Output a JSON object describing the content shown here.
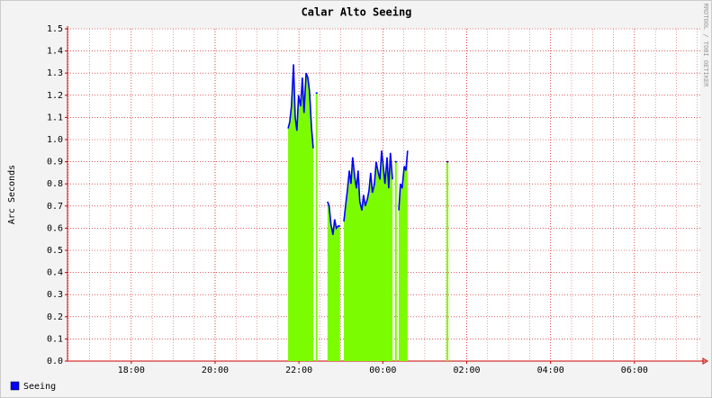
{
  "chart_data": {
    "type": "area",
    "title": "Calar Alto Seeing",
    "y_label": "Arc Seconds",
    "watermark": "RRDTOOL / TOBI OETIKER",
    "x": [
      21.74,
      21.78,
      21.82,
      21.87,
      21.91,
      21.95,
      21.99,
      22.04,
      22.08,
      22.12,
      22.17,
      22.21,
      22.25,
      22.3,
      22.34,
      22.36,
      22.42,
      22.5,
      22.68,
      22.72,
      22.76,
      22.81,
      22.85,
      22.89,
      22.94,
      22.98,
      23.0,
      23.07,
      23.11,
      23.16,
      23.2,
      23.24,
      23.28,
      23.33,
      23.37,
      23.41,
      23.45,
      23.5,
      23.54,
      23.58,
      23.63,
      23.67,
      23.71,
      23.75,
      23.8,
      23.84,
      23.88,
      23.93,
      23.97,
      24.01,
      24.05,
      24.1,
      24.14,
      24.18,
      24.23,
      24.26,
      24.31,
      24.34,
      24.38,
      24.42,
      24.46,
      24.51,
      24.55,
      24.59,
      24.65,
      25.54
    ],
    "series": [
      {
        "name": "Seeing",
        "color": "#0000ff",
        "area_color": "#7cfc00",
        "values": [
          1.05,
          1.08,
          1.15,
          1.34,
          1.1,
          1.04,
          1.2,
          1.15,
          1.28,
          1.12,
          1.3,
          1.28,
          1.22,
          1.05,
          0.96,
          null,
          1.21,
          null,
          0.72,
          0.7,
          0.62,
          0.57,
          0.64,
          0.6,
          0.61,
          0.61,
          null,
          0.63,
          0.7,
          0.78,
          0.86,
          0.8,
          0.92,
          0.83,
          0.78,
          0.86,
          0.72,
          0.68,
          0.75,
          0.7,
          0.73,
          0.77,
          0.85,
          0.76,
          0.8,
          0.9,
          0.86,
          0.82,
          0.95,
          0.88,
          0.8,
          0.92,
          0.78,
          0.94,
          0.82,
          null,
          0.9,
          null,
          0.68,
          0.8,
          0.78,
          0.88,
          0.86,
          0.95,
          null,
          0.9
        ]
      }
    ],
    "xlim": [
      16.48,
      31.57
    ],
    "xticks": [
      {
        "value": 18,
        "label": "18:00"
      },
      {
        "value": 20,
        "label": "20:00"
      },
      {
        "value": 22,
        "label": "22:00"
      },
      {
        "value": 24,
        "label": "00:00"
      },
      {
        "value": 26,
        "label": "02:00"
      },
      {
        "value": 28,
        "label": "04:00"
      },
      {
        "value": 30,
        "label": "06:00"
      }
    ],
    "ylim": [
      0,
      1.5
    ],
    "yticks": [
      {
        "value": 0,
        "label": "0.0"
      },
      0.1,
      0.2,
      0.3,
      0.4,
      0.5,
      0.6,
      0.7,
      0.8,
      0.9,
      {
        "value": 1,
        "label": "1.0"
      },
      1.1,
      1.2,
      1.3,
      1.4,
      1.5
    ],
    "grid": true,
    "grid_color": "#cc0000",
    "legend": "bottom-left"
  }
}
